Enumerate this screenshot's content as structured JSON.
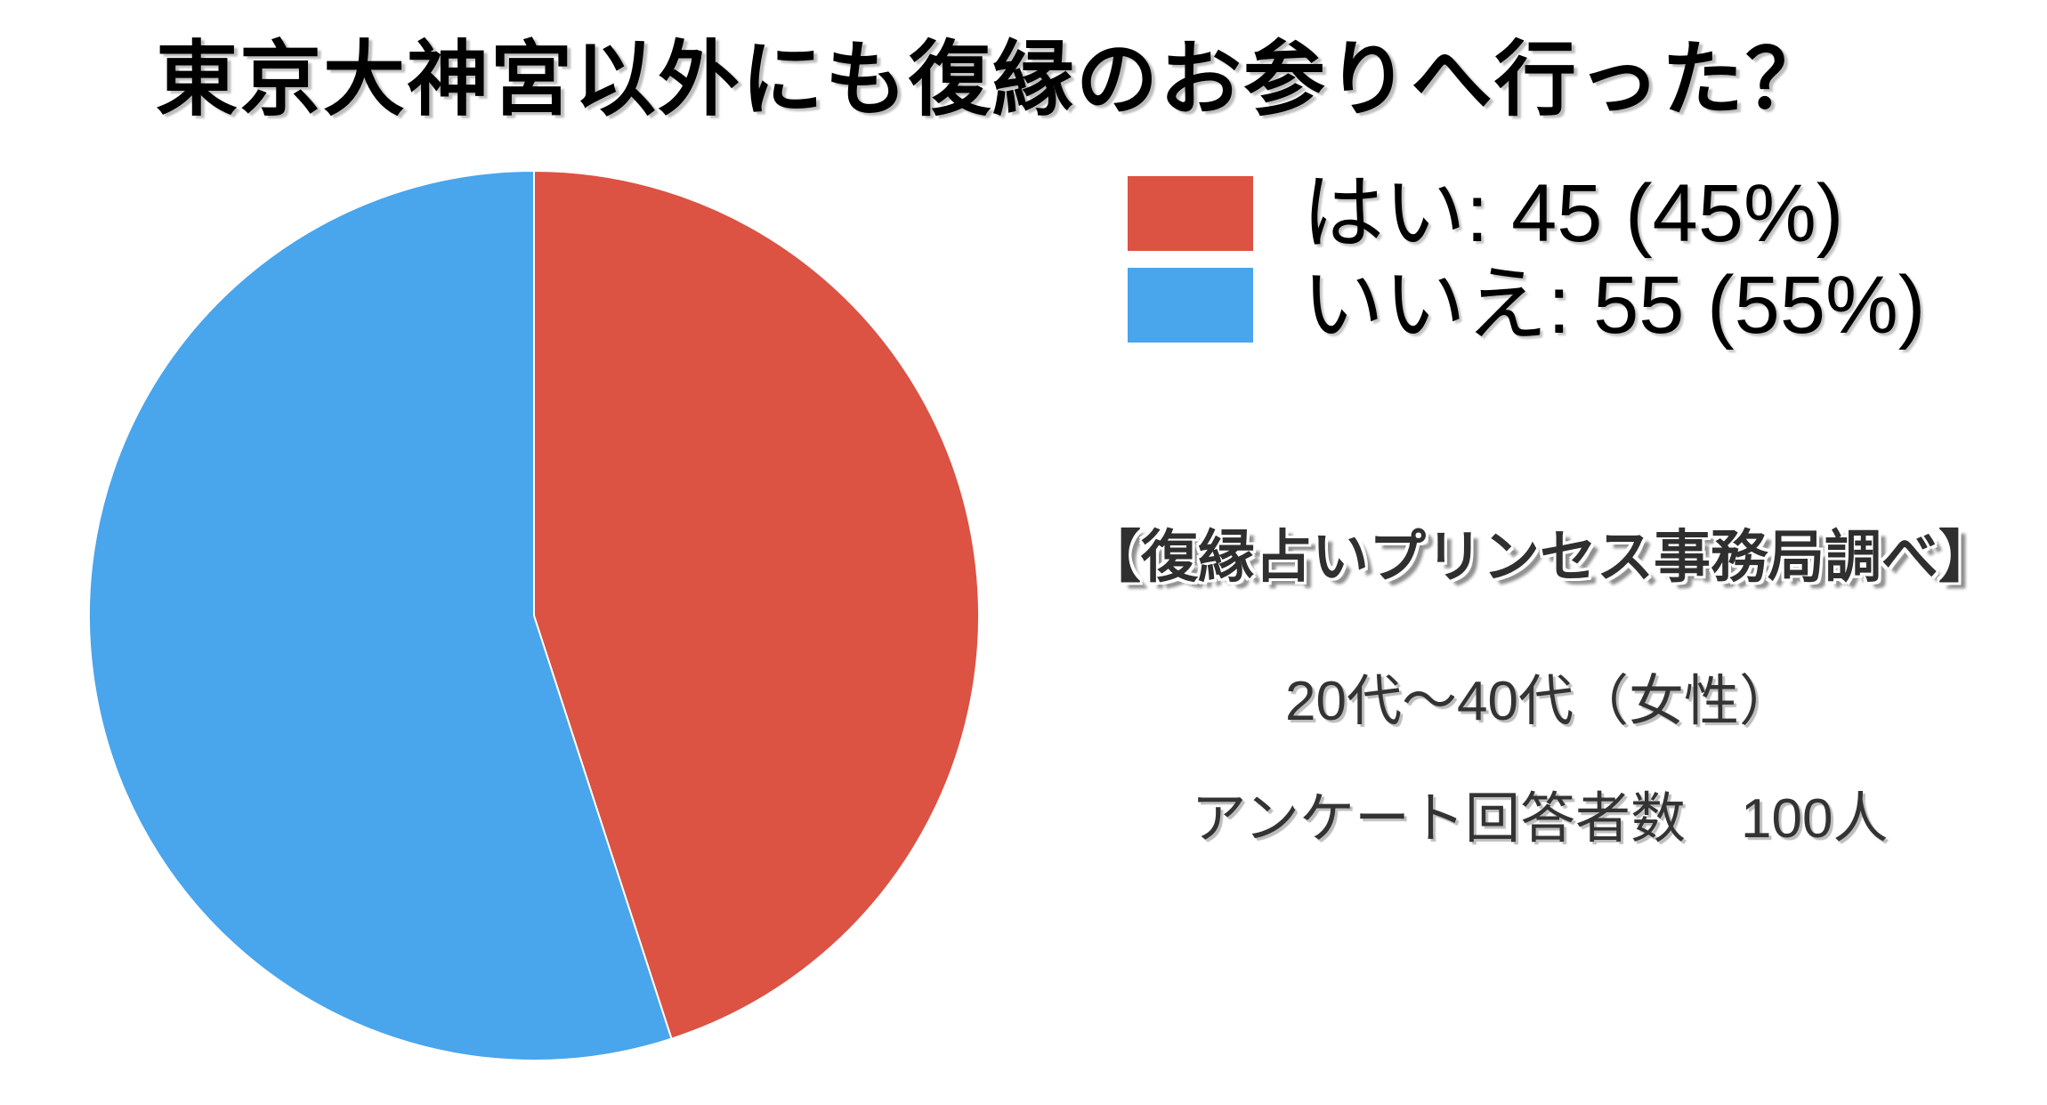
{
  "title": "東京大神宮以外にも復縁のお参りへ行った？",
  "chart_data": {
    "type": "pie",
    "title": "東京大神宮以外にも復縁のお参りへ行った？",
    "categories": [
      "はい",
      "いいえ"
    ],
    "values": [
      45,
      55
    ],
    "percentages": [
      "45%",
      "55%"
    ],
    "slice_colors": [
      "#DC5243",
      "#49A5EC"
    ],
    "start_angle_deg": 0,
    "direction": "clockwise",
    "legend_position": "right",
    "annotations": [
      "【復縁占いプリンセス事務局調べ】",
      "20代～40代（女性）",
      "アンケート回答者数　100人"
    ]
  },
  "legend": {
    "items": [
      {
        "label": "はい: 45 (45%)",
        "color": "#DC5243"
      },
      {
        "label": "いいえ: 55 (55%)",
        "color": "#49A5EC"
      }
    ]
  },
  "annotations": {
    "source": "【復縁占いプリンセス事務局調べ】",
    "demographic": "20代～40代（女性）",
    "respondents": "アンケート回答者数　100人"
  }
}
